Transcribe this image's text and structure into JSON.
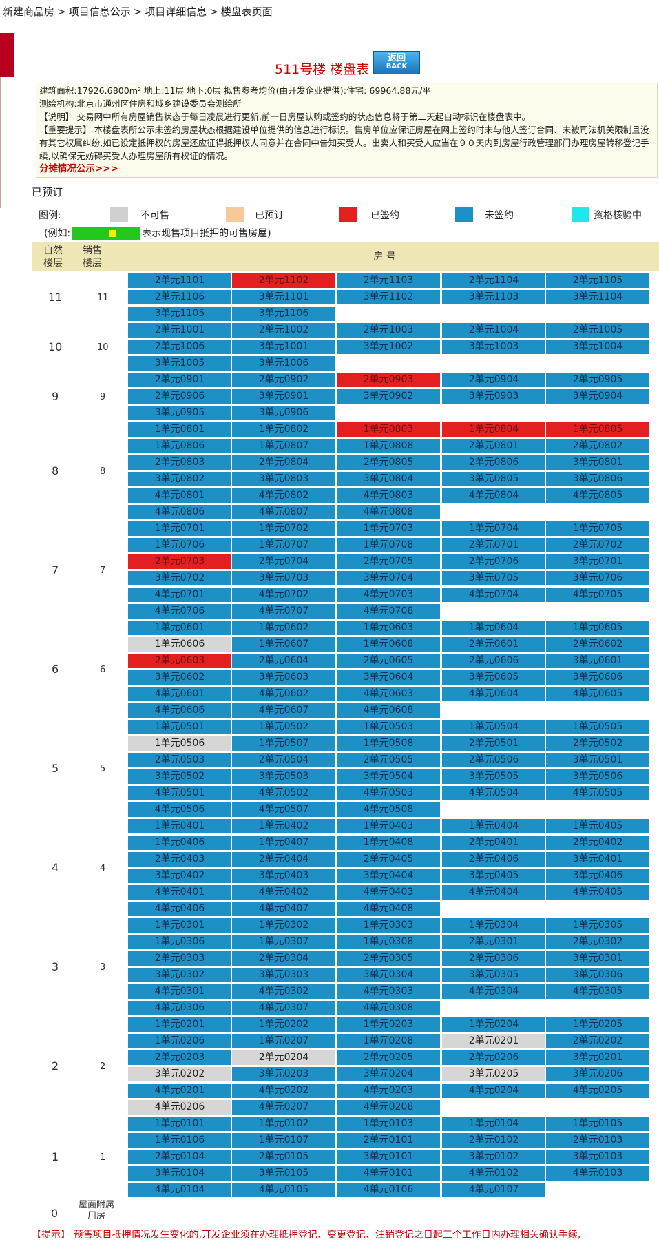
{
  "breadcrumb": [
    "新建商品房",
    "项目信息公示",
    "项目详细信息",
    "楼盘表页面"
  ],
  "breadcrumb_sep": ">",
  "title": "511号楼 楼盘表",
  "back_button": {
    "cn": "返回",
    "en": "BACK"
  },
  "info": {
    "line1": "建筑面积:17926.6800m² 地上:11层 地下:0层 拟售参考均价(由开发企业提供):住宅: 69964.88元/平",
    "line2": "测绘机构:北京市通州区住房和城乡建设委员会测绘所",
    "line3": "【说明】 交易网中所有房屋销售状态于每日凌晨进行更新,前一日房屋认购或签约的状态信息将于第二天起自动标识在楼盘表中。",
    "line4": "【重要提示】 本楼盘表所公示未签约房屋状态根据建设单位提供的信息进行标识。售房单位应保证房屋在网上签约时未与他人签订合同、未被司法机关限制且没有其它权属纠纷,如已设定抵押权的房屋还应征得抵押权人同意并在合同中告知买受人。出卖人和买受人应当在９０天内到房屋行政管理部门办理房屋转移登记手续,以确保无妨碍买受人办理房屋所有权证的情况。",
    "share_link": "分摊情况公示>>>"
  },
  "reserved_label": "已预订",
  "legend": {
    "label": "图例:",
    "items": [
      {
        "text": "不可售",
        "color": "#d0d0d0"
      },
      {
        "text": "已预订",
        "color": "#f6c99a"
      },
      {
        "text": "已签约",
        "color": "#e41f1f"
      },
      {
        "text": "未签约",
        "color": "#1d90c6"
      },
      {
        "text": "资格核验中",
        "color": "#1ee8ec"
      }
    ],
    "example_prefix": "(例如:",
    "example_suffix": "表示现售项目抵押的可售房屋)"
  },
  "table_header": {
    "natural_floor": "自然\n楼层",
    "sales_floor": "销售\n楼层",
    "room": "房 号"
  },
  "floors": [
    {
      "natural": "11",
      "sales": "11",
      "rooms": [
        [
          "2单元1101",
          "n"
        ],
        [
          "2单元1102",
          "r"
        ],
        [
          "2单元1103",
          "n"
        ],
        [
          "2单元1104",
          "n"
        ],
        [
          "2单元1105",
          "n"
        ],
        [
          "2单元1106",
          "n"
        ],
        [
          "3单元1101",
          "n"
        ],
        [
          "3单元1102",
          "n"
        ],
        [
          "3单元1103",
          "n"
        ],
        [
          "3单元1104",
          "n"
        ],
        [
          "3单元1105",
          "n"
        ],
        [
          "3单元1106",
          "n"
        ]
      ]
    },
    {
      "natural": "10",
      "sales": "10",
      "rooms": [
        [
          "2单元1001",
          "n"
        ],
        [
          "2单元1002",
          "n"
        ],
        [
          "2单元1003",
          "n"
        ],
        [
          "2单元1004",
          "n"
        ],
        [
          "2单元1005",
          "n"
        ],
        [
          "2单元1006",
          "n"
        ],
        [
          "3单元1001",
          "n"
        ],
        [
          "3单元1002",
          "n"
        ],
        [
          "3单元1003",
          "n"
        ],
        [
          "3单元1004",
          "n"
        ],
        [
          "3单元1005",
          "n"
        ],
        [
          "3单元1006",
          "n"
        ]
      ]
    },
    {
      "natural": "9",
      "sales": "9",
      "rooms": [
        [
          "2单元0901",
          "n"
        ],
        [
          "2单元0902",
          "n"
        ],
        [
          "2单元0903",
          "r"
        ],
        [
          "2单元0904",
          "n"
        ],
        [
          "2单元0905",
          "n"
        ],
        [
          "2单元0906",
          "n"
        ],
        [
          "3单元0901",
          "n"
        ],
        [
          "3单元0902",
          "n"
        ],
        [
          "3单元0903",
          "n"
        ],
        [
          "3单元0904",
          "n"
        ],
        [
          "3单元0905",
          "n"
        ],
        [
          "3单元0906",
          "n"
        ]
      ]
    },
    {
      "natural": "8",
      "sales": "8",
      "rooms": [
        [
          "1单元0801",
          "n"
        ],
        [
          "1单元0802",
          "n"
        ],
        [
          "1单元0803",
          "r"
        ],
        [
          "1单元0804",
          "r"
        ],
        [
          "1单元0805",
          "r"
        ],
        [
          "1单元0806",
          "n"
        ],
        [
          "1单元0807",
          "n"
        ],
        [
          "1单元0808",
          "n"
        ],
        [
          "2单元0801",
          "n"
        ],
        [
          "2单元0802",
          "n"
        ],
        [
          "2单元0803",
          "n"
        ],
        [
          "2单元0804",
          "n"
        ],
        [
          "2单元0805",
          "n"
        ],
        [
          "2单元0806",
          "n"
        ],
        [
          "3单元0801",
          "n"
        ],
        [
          "3单元0802",
          "n"
        ],
        [
          "3单元0803",
          "n"
        ],
        [
          "3单元0804",
          "n"
        ],
        [
          "3单元0805",
          "n"
        ],
        [
          "3单元0806",
          "n"
        ],
        [
          "4单元0801",
          "n"
        ],
        [
          "4单元0802",
          "n"
        ],
        [
          "4单元0803",
          "n"
        ],
        [
          "4单元0804",
          "n"
        ],
        [
          "4单元0805",
          "n"
        ],
        [
          "4单元0806",
          "n"
        ],
        [
          "4单元0807",
          "n"
        ],
        [
          "4单元0808",
          "n"
        ]
      ]
    },
    {
      "natural": "7",
      "sales": "7",
      "rooms": [
        [
          "1单元0701",
          "n"
        ],
        [
          "1单元0702",
          "n"
        ],
        [
          "1单元0703",
          "n"
        ],
        [
          "1单元0704",
          "n"
        ],
        [
          "1单元0705",
          "n"
        ],
        [
          "1单元0706",
          "n"
        ],
        [
          "1单元0707",
          "n"
        ],
        [
          "1单元0708",
          "n"
        ],
        [
          "2单元0701",
          "n"
        ],
        [
          "2单元0702",
          "n"
        ],
        [
          "2单元0703",
          "r"
        ],
        [
          "2单元0704",
          "n"
        ],
        [
          "2单元0705",
          "n"
        ],
        [
          "2单元0706",
          "n"
        ],
        [
          "3单元0701",
          "n"
        ],
        [
          "3单元0702",
          "n"
        ],
        [
          "3单元0703",
          "n"
        ],
        [
          "3单元0704",
          "n"
        ],
        [
          "3单元0705",
          "n"
        ],
        [
          "3单元0706",
          "n"
        ],
        [
          "4单元0701",
          "n"
        ],
        [
          "4单元0702",
          "n"
        ],
        [
          "4单元0703",
          "n"
        ],
        [
          "4单元0704",
          "n"
        ],
        [
          "4单元0705",
          "n"
        ],
        [
          "4单元0706",
          "n"
        ],
        [
          "4单元0707",
          "n"
        ],
        [
          "4单元0708",
          "n"
        ]
      ]
    },
    {
      "natural": "6",
      "sales": "6",
      "rooms": [
        [
          "1单元0601",
          "n"
        ],
        [
          "1单元0602",
          "n"
        ],
        [
          "1单元0603",
          "n"
        ],
        [
          "1单元0604",
          "n"
        ],
        [
          "1单元0605",
          "n"
        ],
        [
          "1单元0606",
          "g"
        ],
        [
          "1单元0607",
          "n"
        ],
        [
          "1单元0608",
          "n"
        ],
        [
          "2单元0601",
          "n"
        ],
        [
          "2单元0602",
          "n"
        ],
        [
          "2单元0603",
          "r"
        ],
        [
          "2单元0604",
          "n"
        ],
        [
          "2单元0605",
          "n"
        ],
        [
          "2单元0606",
          "n"
        ],
        [
          "3单元0601",
          "n"
        ],
        [
          "3单元0602",
          "n"
        ],
        [
          "3单元0603",
          "n"
        ],
        [
          "3单元0604",
          "n"
        ],
        [
          "3单元0605",
          "n"
        ],
        [
          "3单元0606",
          "n"
        ],
        [
          "4单元0601",
          "n"
        ],
        [
          "4单元0602",
          "n"
        ],
        [
          "4单元0603",
          "n"
        ],
        [
          "4单元0604",
          "n"
        ],
        [
          "4单元0605",
          "n"
        ],
        [
          "4单元0606",
          "n"
        ],
        [
          "4单元0607",
          "n"
        ],
        [
          "4单元0608",
          "n"
        ]
      ]
    },
    {
      "natural": "5",
      "sales": "5",
      "rooms": [
        [
          "1单元0501",
          "n"
        ],
        [
          "1单元0502",
          "n"
        ],
        [
          "1单元0503",
          "n"
        ],
        [
          "1单元0504",
          "n"
        ],
        [
          "1单元0505",
          "n"
        ],
        [
          "1单元0506",
          "g"
        ],
        [
          "1单元0507",
          "n"
        ],
        [
          "1单元0508",
          "n"
        ],
        [
          "2单元0501",
          "n"
        ],
        [
          "2单元0502",
          "n"
        ],
        [
          "2单元0503",
          "n"
        ],
        [
          "2单元0504",
          "n"
        ],
        [
          "2单元0505",
          "n"
        ],
        [
          "2单元0506",
          "n"
        ],
        [
          "3单元0501",
          "n"
        ],
        [
          "3单元0502",
          "n"
        ],
        [
          "3单元0503",
          "n"
        ],
        [
          "3单元0504",
          "n"
        ],
        [
          "3单元0505",
          "n"
        ],
        [
          "3单元0506",
          "n"
        ],
        [
          "4单元0501",
          "n"
        ],
        [
          "4单元0502",
          "n"
        ],
        [
          "4单元0503",
          "n"
        ],
        [
          "4单元0504",
          "n"
        ],
        [
          "4单元0505",
          "n"
        ],
        [
          "4单元0506",
          "n"
        ],
        [
          "4单元0507",
          "n"
        ],
        [
          "4单元0508",
          "n"
        ]
      ]
    },
    {
      "natural": "4",
      "sales": "4",
      "rooms": [
        [
          "1单元0401",
          "n"
        ],
        [
          "1单元0402",
          "n"
        ],
        [
          "1单元0403",
          "n"
        ],
        [
          "1单元0404",
          "n"
        ],
        [
          "1单元0405",
          "n"
        ],
        [
          "1单元0406",
          "n"
        ],
        [
          "1单元0407",
          "n"
        ],
        [
          "1单元0408",
          "n"
        ],
        [
          "2单元0401",
          "n"
        ],
        [
          "2单元0402",
          "n"
        ],
        [
          "2单元0403",
          "n"
        ],
        [
          "2单元0404",
          "n"
        ],
        [
          "2单元0405",
          "n"
        ],
        [
          "2单元0406",
          "n"
        ],
        [
          "3单元0401",
          "n"
        ],
        [
          "3单元0402",
          "n"
        ],
        [
          "3单元0403",
          "n"
        ],
        [
          "3单元0404",
          "n"
        ],
        [
          "3单元0405",
          "n"
        ],
        [
          "3单元0406",
          "n"
        ],
        [
          "4单元0401",
          "n"
        ],
        [
          "4单元0402",
          "n"
        ],
        [
          "4单元0403",
          "n"
        ],
        [
          "4单元0404",
          "n"
        ],
        [
          "4单元0405",
          "n"
        ],
        [
          "4单元0406",
          "n"
        ],
        [
          "4单元0407",
          "n"
        ],
        [
          "4单元0408",
          "n"
        ]
      ]
    },
    {
      "natural": "3",
      "sales": "3",
      "rooms": [
        [
          "1单元0301",
          "n"
        ],
        [
          "1单元0302",
          "n"
        ],
        [
          "1单元0303",
          "n"
        ],
        [
          "1单元0304",
          "n"
        ],
        [
          "1单元0305",
          "n"
        ],
        [
          "1单元0306",
          "n"
        ],
        [
          "1单元0307",
          "n"
        ],
        [
          "1单元0308",
          "n"
        ],
        [
          "2单元0301",
          "n"
        ],
        [
          "2单元0302",
          "n"
        ],
        [
          "2单元0303",
          "n"
        ],
        [
          "2单元0304",
          "n"
        ],
        [
          "2单元0305",
          "n"
        ],
        [
          "2单元0306",
          "n"
        ],
        [
          "3单元0301",
          "n"
        ],
        [
          "3单元0302",
          "n"
        ],
        [
          "3单元0303",
          "n"
        ],
        [
          "3单元0304",
          "n"
        ],
        [
          "3单元0305",
          "n"
        ],
        [
          "3单元0306",
          "n"
        ],
        [
          "4单元0301",
          "n"
        ],
        [
          "4单元0302",
          "n"
        ],
        [
          "4单元0303",
          "n"
        ],
        [
          "4单元0304",
          "n"
        ],
        [
          "4单元0305",
          "n"
        ],
        [
          "4单元0306",
          "n"
        ],
        [
          "4单元0307",
          "n"
        ],
        [
          "4单元0308",
          "n"
        ]
      ]
    },
    {
      "natural": "2",
      "sales": "2",
      "rooms": [
        [
          "1单元0201",
          "n"
        ],
        [
          "1单元0202",
          "n"
        ],
        [
          "1单元0203",
          "n"
        ],
        [
          "1单元0204",
          "n"
        ],
        [
          "1单元0205",
          "n"
        ],
        [
          "1单元0206",
          "n"
        ],
        [
          "1单元0207",
          "n"
        ],
        [
          "1单元0208",
          "n"
        ],
        [
          "2单元0201",
          "g"
        ],
        [
          "2单元0202",
          "n"
        ],
        [
          "2单元0203",
          "n"
        ],
        [
          "2单元0204",
          "g"
        ],
        [
          "2单元0205",
          "n"
        ],
        [
          "2单元0206",
          "n"
        ],
        [
          "3单元0201",
          "n"
        ],
        [
          "3单元0202",
          "g"
        ],
        [
          "3单元0203",
          "n"
        ],
        [
          "3单元0204",
          "n"
        ],
        [
          "3单元0205",
          "g"
        ],
        [
          "3单元0206",
          "n"
        ],
        [
          "4单元0201",
          "n"
        ],
        [
          "4单元0202",
          "n"
        ],
        [
          "4单元0203",
          "n"
        ],
        [
          "4单元0204",
          "n"
        ],
        [
          "4单元0205",
          "n"
        ],
        [
          "4单元0206",
          "g"
        ],
        [
          "4单元0207",
          "n"
        ],
        [
          "4单元0208",
          "n"
        ]
      ]
    },
    {
      "natural": "1",
      "sales": "1",
      "rooms": [
        [
          "1单元0101",
          "n"
        ],
        [
          "1单元0102",
          "n"
        ],
        [
          "1单元0103",
          "n"
        ],
        [
          "1单元0104",
          "n"
        ],
        [
          "1单元0105",
          "n"
        ],
        [
          "1单元0106",
          "n"
        ],
        [
          "1单元0107",
          "n"
        ],
        [
          "2单元0101",
          "n"
        ],
        [
          "2单元0102",
          "n"
        ],
        [
          "2单元0103",
          "n"
        ],
        [
          "2单元0104",
          "n"
        ],
        [
          "2单元0105",
          "n"
        ],
        [
          "3单元0101",
          "n"
        ],
        [
          "3单元0102",
          "n"
        ],
        [
          "3单元0103",
          "n"
        ],
        [
          "3单元0104",
          "n"
        ],
        [
          "3单元0105",
          "n"
        ],
        [
          "4单元0101",
          "n"
        ],
        [
          "4单元0102",
          "n"
        ],
        [
          "4单元0103",
          "n"
        ],
        [
          "4单元0104",
          "n"
        ],
        [
          "4单元0105",
          "n"
        ],
        [
          "4单元0106",
          "n"
        ],
        [
          "4单元0107",
          "n"
        ]
      ]
    }
  ],
  "floor_zero": {
    "natural": "0",
    "sales": "屋面附属用房"
  },
  "footer_tip": "【提示】 预售项目抵押情况发生变化的,开发企业须在办理抵押登记、变更登记、注销登记之日起三个工作日内办理相关确认手续,"
}
